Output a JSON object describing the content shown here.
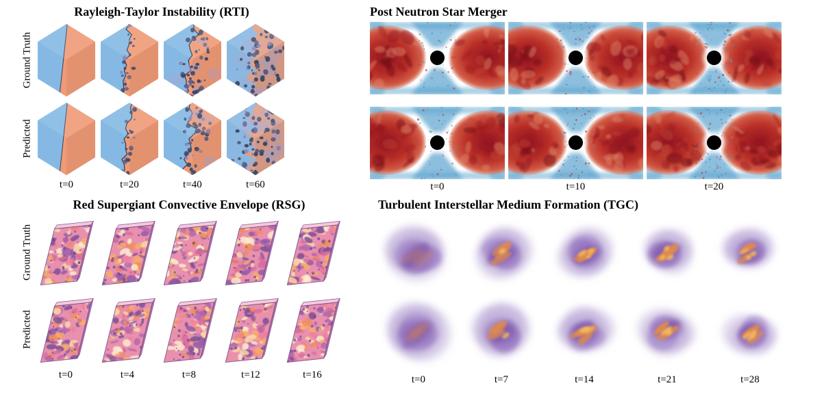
{
  "figure": {
    "panels": {
      "rti": {
        "title": "Rayleigh-Taylor Instability (RTI)",
        "row_labels": [
          "Ground Truth",
          "Predicted"
        ],
        "time_labels": [
          "t=0",
          "t=20",
          "t=40",
          "t=60"
        ]
      },
      "nsm": {
        "title": "Post Neutron Star Merger",
        "time_labels": [
          "t=0",
          "t=10",
          "t=20"
        ]
      },
      "rsg": {
        "title": "Red Supergiant Convective Envelope (RSG)",
        "row_labels": [
          "Ground Truth",
          "Predicted"
        ],
        "time_labels": [
          "t=0",
          "t=4",
          "t=8",
          "t=12",
          "t=16"
        ]
      },
      "tgc": {
        "title": "Turbulent Interstellar Medium Formation (TGC)",
        "time_labels": [
          "t=0",
          "t=7",
          "t=14",
          "t=21",
          "t=28"
        ]
      }
    },
    "colors": {
      "rti_blue": "#85b9e4",
      "rti_orange": "#f09a76",
      "rti_interface": "#27354f",
      "nsm_red_dark": "#8e1220",
      "nsm_red": "#bb3029",
      "nsm_red_edge": "#d96a4f",
      "nsm_blue": "#5ba3cf",
      "nsm_blue_light": "#a8d0e6",
      "nsm_black": "#000000",
      "rsg_pink": "#e890ae",
      "rsg_top": "#f5c9da",
      "rsg_side": "#b272a6",
      "rsg_edge": "#5f3d82",
      "tgc_haze": "#b7a4d4",
      "tgc_purple": "#9674c0",
      "tgc_dark": "#7a55a8",
      "tgc_orange": "#e08a4e",
      "tgc_yellow": "#f4bd5e"
    }
  }
}
